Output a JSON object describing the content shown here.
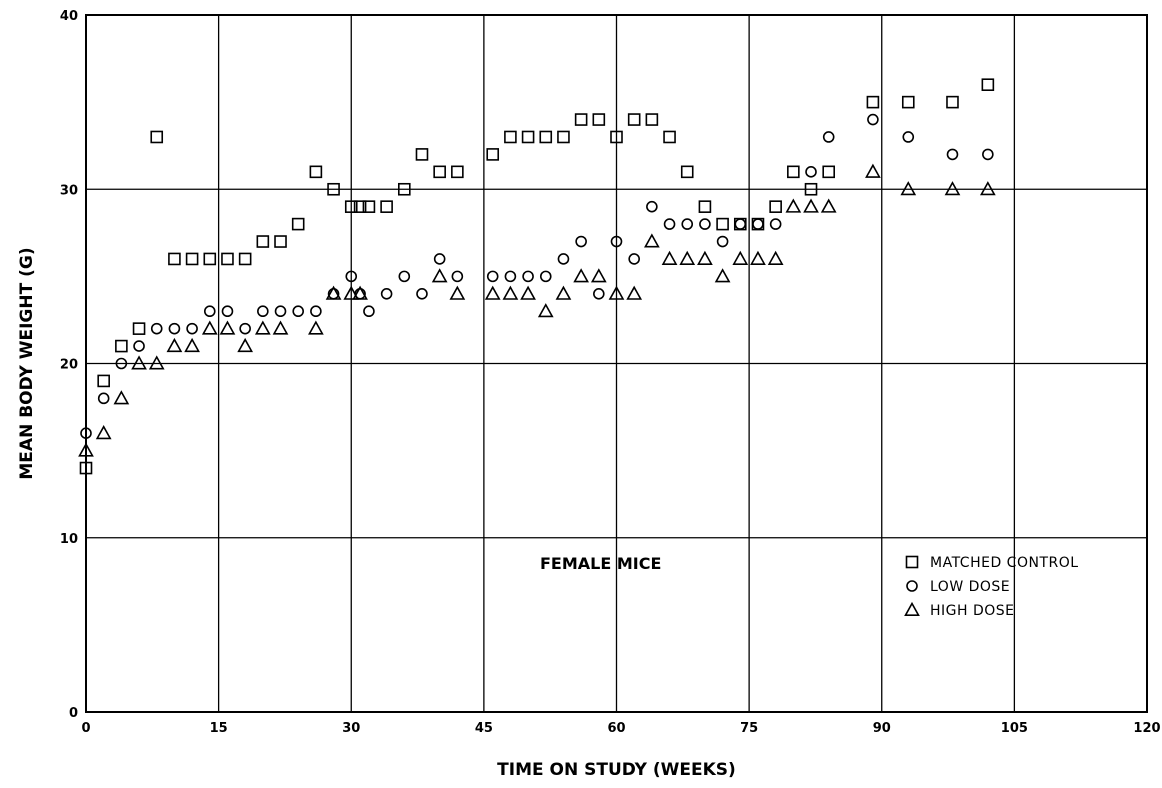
{
  "chart_data": {
    "type": "scatter",
    "title": "",
    "xlabel": "TIME ON STUDY (WEEKS)",
    "ylabel": "MEAN BODY WEIGHT (G)",
    "xlim": [
      0,
      120
    ],
    "ylim": [
      0,
      40
    ],
    "xticks": [
      "0",
      "15",
      "30",
      "45",
      "60",
      "75",
      "90",
      "105",
      "120"
    ],
    "yticks": [
      "0",
      "10",
      "20",
      "30",
      "40"
    ],
    "grid": true,
    "legend_position": "bottom-right",
    "annotation": "FEMALE MICE",
    "series": [
      {
        "name": "MATCHED CONTROL",
        "marker": "square",
        "points": [
          [
            0,
            14
          ],
          [
            2,
            19
          ],
          [
            4,
            21
          ],
          [
            6,
            22
          ],
          [
            8,
            33
          ],
          [
            10,
            26
          ],
          [
            12,
            26
          ],
          [
            14,
            26
          ],
          [
            16,
            26
          ],
          [
            18,
            26
          ],
          [
            20,
            27
          ],
          [
            22,
            27
          ],
          [
            24,
            28
          ],
          [
            26,
            31
          ],
          [
            28,
            30
          ],
          [
            30,
            29
          ],
          [
            31,
            29
          ],
          [
            32,
            29
          ],
          [
            34,
            29
          ],
          [
            36,
            30
          ],
          [
            38,
            32
          ],
          [
            40,
            31
          ],
          [
            42,
            31
          ],
          [
            46,
            32
          ],
          [
            48,
            33
          ],
          [
            50,
            33
          ],
          [
            52,
            33
          ],
          [
            54,
            33
          ],
          [
            56,
            34
          ],
          [
            58,
            34
          ],
          [
            60,
            33
          ],
          [
            62,
            34
          ],
          [
            64,
            34
          ],
          [
            66,
            33
          ],
          [
            68,
            31
          ],
          [
            70,
            29
          ],
          [
            72,
            28
          ],
          [
            74,
            28
          ],
          [
            76,
            28
          ],
          [
            78,
            29
          ],
          [
            80,
            31
          ],
          [
            82,
            30
          ],
          [
            84,
            31
          ],
          [
            89,
            35
          ],
          [
            93,
            35
          ],
          [
            98,
            35
          ],
          [
            102,
            36
          ]
        ]
      },
      {
        "name": "LOW DOSE",
        "marker": "circle",
        "points": [
          [
            0,
            16
          ],
          [
            2,
            18
          ],
          [
            4,
            20
          ],
          [
            6,
            21
          ],
          [
            8,
            22
          ],
          [
            10,
            22
          ],
          [
            12,
            22
          ],
          [
            14,
            23
          ],
          [
            16,
            23
          ],
          [
            18,
            22
          ],
          [
            20,
            23
          ],
          [
            22,
            23
          ],
          [
            24,
            23
          ],
          [
            26,
            23
          ],
          [
            28,
            24
          ],
          [
            30,
            25
          ],
          [
            31,
            24
          ],
          [
            32,
            23
          ],
          [
            34,
            24
          ],
          [
            36,
            25
          ],
          [
            38,
            24
          ],
          [
            40,
            26
          ],
          [
            42,
            25
          ],
          [
            46,
            25
          ],
          [
            48,
            25
          ],
          [
            50,
            25
          ],
          [
            52,
            25
          ],
          [
            54,
            26
          ],
          [
            56,
            27
          ],
          [
            58,
            24
          ],
          [
            60,
            27
          ],
          [
            62,
            26
          ],
          [
            64,
            29
          ],
          [
            66,
            28
          ],
          [
            68,
            28
          ],
          [
            70,
            28
          ],
          [
            72,
            27
          ],
          [
            74,
            28
          ],
          [
            76,
            28
          ],
          [
            78,
            28
          ],
          [
            82,
            31
          ],
          [
            84,
            33
          ],
          [
            89,
            34
          ],
          [
            93,
            33
          ],
          [
            98,
            32
          ],
          [
            102,
            32
          ]
        ]
      },
      {
        "name": "HIGH DOSE",
        "marker": "triangle",
        "points": [
          [
            0,
            15
          ],
          [
            2,
            16
          ],
          [
            4,
            18
          ],
          [
            6,
            20
          ],
          [
            8,
            20
          ],
          [
            10,
            21
          ],
          [
            12,
            21
          ],
          [
            14,
            22
          ],
          [
            16,
            22
          ],
          [
            18,
            21
          ],
          [
            20,
            22
          ],
          [
            22,
            22
          ],
          [
            26,
            22
          ],
          [
            28,
            24
          ],
          [
            30,
            24
          ],
          [
            31,
            24
          ],
          [
            40,
            25
          ],
          [
            42,
            24
          ],
          [
            46,
            24
          ],
          [
            48,
            24
          ],
          [
            50,
            24
          ],
          [
            52,
            23
          ],
          [
            54,
            24
          ],
          [
            56,
            25
          ],
          [
            58,
            25
          ],
          [
            60,
            24
          ],
          [
            62,
            24
          ],
          [
            64,
            27
          ],
          [
            66,
            26
          ],
          [
            68,
            26
          ],
          [
            70,
            26
          ],
          [
            72,
            25
          ],
          [
            74,
            26
          ],
          [
            76,
            26
          ],
          [
            78,
            26
          ],
          [
            80,
            29
          ],
          [
            82,
            29
          ],
          [
            84,
            29
          ],
          [
            89,
            31
          ],
          [
            93,
            30
          ],
          [
            98,
            30
          ],
          [
            102,
            30
          ]
        ]
      }
    ]
  }
}
